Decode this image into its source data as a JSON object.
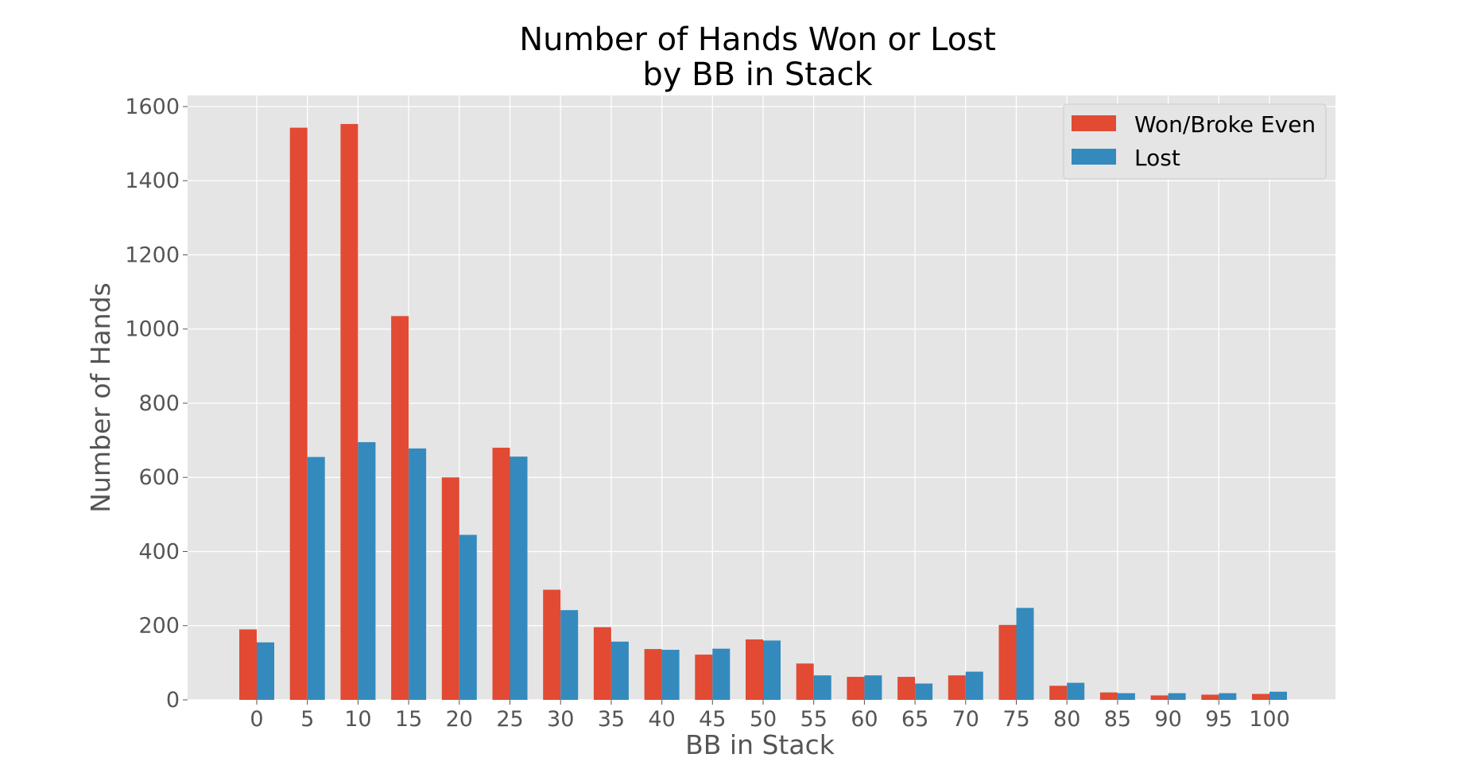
{
  "chart_data": {
    "type": "bar",
    "title": [
      "Number of Hands Won or Lost",
      "by BB in Stack"
    ],
    "xlabel": "BB in Stack",
    "ylabel": "Number of Hands",
    "categories": [
      "0",
      "5",
      "10",
      "15",
      "20",
      "25",
      "30",
      "35",
      "40",
      "45",
      "50",
      "55",
      "60",
      "65",
      "70",
      "75",
      "80",
      "85",
      "90",
      "95",
      "100"
    ],
    "series": [
      {
        "name": "Won/Broke Even",
        "color": "#E24A33",
        "values": [
          190,
          1543,
          1553,
          1035,
          600,
          680,
          297,
          196,
          137,
          122,
          163,
          98,
          62,
          62,
          66,
          202,
          38,
          20,
          12,
          14,
          16
        ]
      },
      {
        "name": "Lost",
        "color": "#348ABD",
        "values": [
          155,
          655,
          695,
          678,
          445,
          656,
          242,
          157,
          135,
          138,
          160,
          66,
          66,
          44,
          76,
          248,
          46,
          18,
          18,
          18,
          22
        ]
      }
    ],
    "ylim": [
      0,
      1630
    ],
    "yticks": [
      0,
      200,
      400,
      600,
      800,
      1000,
      1200,
      1400,
      1600
    ],
    "grid": true,
    "background": "#E5E5E5",
    "legend_position": "top-right"
  }
}
